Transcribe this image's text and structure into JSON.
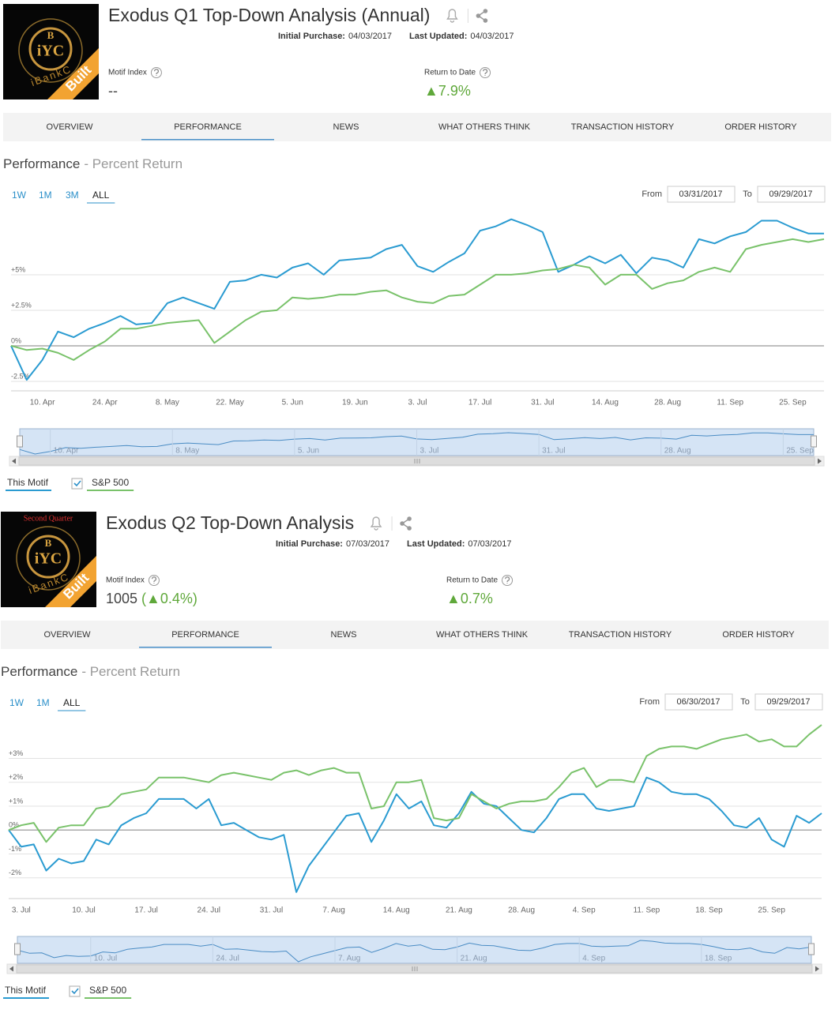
{
  "panels": [
    {
      "title": "Exodus Q1 Top-Down Analysis (Annual)",
      "logo": {
        "top": "B",
        "middle": "iYC",
        "caption": "iBankC",
        "ribbon": "Built"
      },
      "initial_purchase_label": "Initial Purchase:",
      "initial_purchase": "04/03/2017",
      "last_updated_label": "Last Updated:",
      "last_updated": "04/03/2017",
      "motif_index_label": "Motif Index",
      "motif_index_value": "--",
      "return_label": "Return to Date",
      "return_value": "▲7.9%",
      "tabs": [
        "OVERVIEW",
        "PERFORMANCE",
        "NEWS",
        "WHAT OTHERS THINK",
        "TRANSACTION HISTORY",
        "ORDER HISTORY"
      ],
      "active_tab": 1,
      "performance_title": "Performance",
      "performance_subtitle": "- Percent Return",
      "ranges": [
        "1W",
        "1M",
        "3M",
        "ALL"
      ],
      "active_range": 3,
      "from_label": "From",
      "from": "03/31/2017",
      "to_label": "To",
      "to": "09/29/2017",
      "navigator_labels": [
        "10. Apr",
        "8. May",
        "5. Jun",
        "3. Jul",
        "31. Jul",
        "28. Aug",
        "25. Sep"
      ]
    },
    {
      "title": "Exodus Q2 Top-Down Analysis",
      "logo": {
        "banner_top": "Second Quarter",
        "top": "B",
        "middle": "iYC",
        "caption": "iBankC",
        "ribbon": "Built"
      },
      "initial_purchase_label": "Initial Purchase:",
      "initial_purchase": "07/03/2017",
      "last_updated_label": "Last Updated:",
      "last_updated": "07/03/2017",
      "motif_index_label": "Motif Index",
      "motif_index_value": "1005",
      "motif_index_change": "(▲0.4%)",
      "return_label": "Return to Date",
      "return_value": "▲0.7%",
      "tabs": [
        "OVERVIEW",
        "PERFORMANCE",
        "NEWS",
        "WHAT OTHERS THINK",
        "TRANSACTION HISTORY",
        "ORDER HISTORY"
      ],
      "active_tab": 1,
      "performance_title": "Performance",
      "performance_subtitle": "- Percent Return",
      "ranges": [
        "1W",
        "1M",
        "ALL"
      ],
      "active_range": 2,
      "from_label": "From",
      "from": "06/30/2017",
      "to_label": "To",
      "to": "09/29/2017",
      "navigator_labels": [
        "10. Jul",
        "24. Jul",
        "7. Aug",
        "21. Aug",
        "4. Sep",
        "18. Sep"
      ]
    }
  ],
  "chart_data": [
    {
      "type": "line",
      "categories": [
        null,
        null,
        "10. Apr",
        null,
        null,
        null,
        "24. Apr",
        null,
        null,
        null,
        "8. May",
        null,
        null,
        null,
        "22. May",
        null,
        null,
        null,
        "5. Jun",
        null,
        null,
        null,
        "19. Jun",
        null,
        null,
        null,
        "3. Jul",
        null,
        null,
        null,
        "17. Jul",
        null,
        null,
        null,
        "31. Jul",
        null,
        null,
        null,
        "14. Aug",
        null,
        null,
        null,
        "28. Aug",
        null,
        null,
        null,
        "11. Sep",
        null,
        null,
        null,
        "25. Sep",
        null,
        null
      ],
      "series": [
        {
          "name": "This Motif",
          "color": "#2a9bd1",
          "values": [
            0,
            -2.4,
            -1.0,
            1.0,
            0.6,
            1.2,
            1.6,
            2.1,
            1.5,
            1.6,
            3.0,
            3.4,
            3.0,
            2.6,
            4.5,
            4.6,
            5.0,
            4.8,
            5.5,
            5.8,
            5.0,
            6.0,
            6.1,
            6.2,
            6.8,
            7.1,
            5.6,
            5.2,
            5.9,
            6.5,
            8.1,
            8.4,
            8.9,
            8.5,
            8.0,
            5.2,
            5.7,
            6.3,
            5.8,
            6.4,
            5.1,
            6.2,
            6.0,
            5.5,
            7.5,
            7.2,
            7.7,
            8.0,
            8.8,
            8.8,
            8.3,
            7.9,
            7.9
          ]
        },
        {
          "name": "S&P 500",
          "color": "#79c26a",
          "values": [
            0,
            -0.3,
            -0.2,
            -0.5,
            -1.0,
            -0.3,
            0.3,
            1.2,
            1.2,
            1.4,
            1.6,
            1.7,
            1.8,
            0.2,
            1.0,
            1.8,
            2.4,
            2.5,
            3.4,
            3.3,
            3.4,
            3.6,
            3.6,
            3.8,
            3.9,
            3.4,
            3.1,
            3.0,
            3.5,
            3.6,
            4.3,
            5.0,
            5.0,
            5.1,
            5.3,
            5.4,
            5.7,
            5.5,
            4.3,
            5.0,
            5.0,
            4.0,
            4.4,
            4.6,
            5.2,
            5.5,
            5.2,
            6.8,
            7.1,
            7.3,
            7.5,
            7.3,
            7.5
          ]
        }
      ],
      "ylim": [
        -3.17,
        9.33
      ],
      "yticks": [
        {
          "value": -2.5,
          "label": "-2.5%"
        },
        {
          "value": 0,
          "label": "0%"
        },
        {
          "value": 2.5,
          "label": "+2.5%"
        },
        {
          "value": 5,
          "label": "+5%"
        }
      ],
      "grid": true
    },
    {
      "type": "line",
      "categories": [
        null,
        "3. Jul",
        null,
        null,
        null,
        null,
        "10. Jul",
        null,
        null,
        null,
        null,
        "17. Jul",
        null,
        null,
        null,
        null,
        "24. Jul",
        null,
        null,
        null,
        null,
        "31. Jul",
        null,
        null,
        null,
        null,
        "7. Aug",
        null,
        null,
        null,
        null,
        "14. Aug",
        null,
        null,
        null,
        null,
        "21. Aug",
        null,
        null,
        null,
        null,
        "28. Aug",
        null,
        null,
        null,
        null,
        "4. Sep",
        null,
        null,
        null,
        null,
        "11. Sep",
        null,
        null,
        null,
        null,
        "18. Sep",
        null,
        null,
        null,
        null,
        "25. Sep",
        null,
        null,
        null,
        null
      ],
      "series": [
        {
          "name": "This Motif",
          "color": "#2a9bd1",
          "values": [
            0.0,
            -0.7,
            -0.6,
            -1.7,
            -1.2,
            -1.4,
            -1.3,
            -0.4,
            -0.6,
            0.2,
            0.5,
            0.7,
            1.3,
            1.3,
            1.3,
            0.9,
            1.3,
            0.2,
            0.3,
            0.0,
            -0.3,
            -0.4,
            -0.2,
            -2.6,
            -1.5,
            -0.8,
            -0.1,
            0.6,
            0.7,
            -0.5,
            0.4,
            1.5,
            0.9,
            1.2,
            0.2,
            0.1,
            0.7,
            1.6,
            1.1,
            1.0,
            0.5,
            0.0,
            -0.1,
            0.5,
            1.3,
            1.5,
            1.5,
            0.9,
            0.8,
            0.9,
            1.0,
            2.2,
            2.0,
            1.6,
            1.5,
            1.5,
            1.3,
            0.8,
            0.2,
            0.1,
            0.5,
            -0.4,
            -0.7,
            0.6,
            0.3,
            0.7
          ]
        },
        {
          "name": "S&P 500",
          "color": "#79c26a",
          "values": [
            0.0,
            0.2,
            0.3,
            -0.5,
            0.1,
            0.2,
            0.2,
            0.9,
            1.0,
            1.5,
            1.6,
            1.7,
            2.2,
            2.2,
            2.2,
            2.1,
            2.0,
            2.3,
            2.4,
            2.3,
            2.2,
            2.1,
            2.4,
            2.5,
            2.3,
            2.5,
            2.6,
            2.4,
            2.4,
            0.9,
            1.0,
            2.0,
            2.0,
            2.1,
            0.5,
            0.4,
            0.5,
            1.5,
            1.2,
            0.9,
            1.1,
            1.2,
            1.2,
            1.3,
            1.8,
            2.4,
            2.6,
            1.8,
            2.1,
            2.1,
            2.0,
            3.1,
            3.4,
            3.5,
            3.5,
            3.4,
            3.6,
            3.8,
            3.9,
            4.0,
            3.7,
            3.8,
            3.5,
            3.5,
            4.0,
            4.4
          ]
        }
      ],
      "ylim": [
        -2.87,
        4.57
      ],
      "yticks": [
        {
          "value": -2,
          "label": "-2%"
        },
        {
          "value": -1,
          "label": "-1%"
        },
        {
          "value": 0,
          "label": "0%"
        },
        {
          "value": 1,
          "label": "+1%"
        },
        {
          "value": 2,
          "label": "+2%"
        },
        {
          "value": 3,
          "label": "+3%"
        }
      ],
      "grid": true
    }
  ]
}
